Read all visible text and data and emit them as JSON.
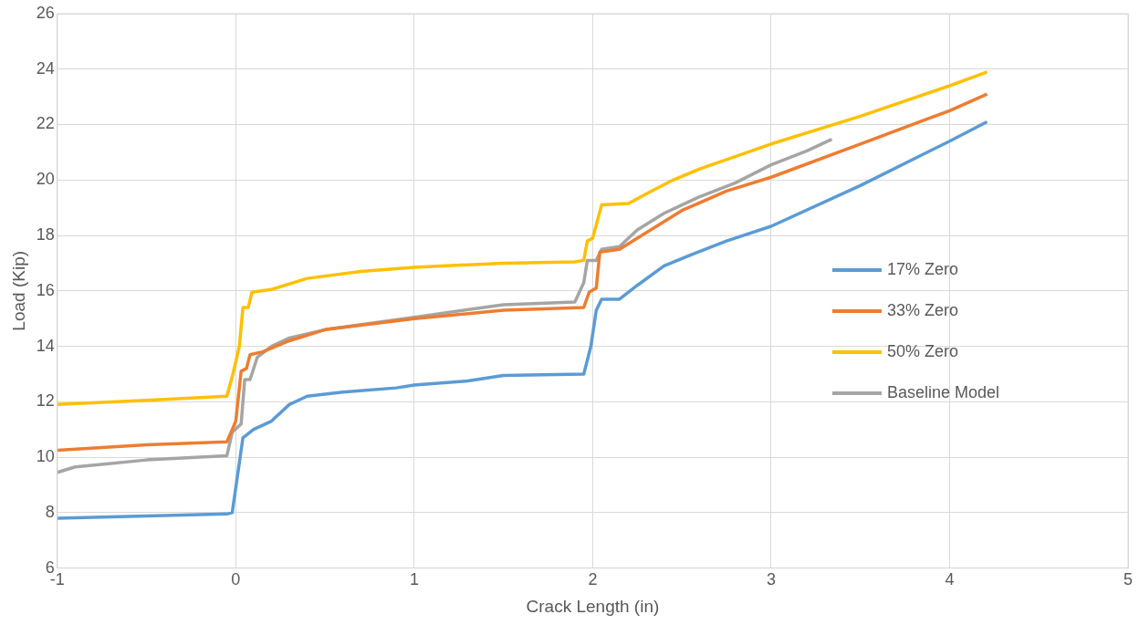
{
  "chart_data": {
    "type": "line",
    "xlabel": "Crack Length (in)",
    "ylabel": "Load (Kip)",
    "xlim": [
      -1,
      5
    ],
    "xticks": [
      -1,
      0,
      1,
      2,
      3,
      4,
      5
    ],
    "ylim": [
      6,
      26
    ],
    "yticks": [
      6,
      8,
      10,
      12,
      14,
      16,
      18,
      20,
      22,
      24,
      26
    ],
    "grid": true,
    "legend": "right",
    "marker": "none",
    "line_style": "solid",
    "series": [
      {
        "name": "17% Zero",
        "color": "#5b9bd5",
        "x": [
          -1,
          -0.7,
          -0.4,
          -0.05,
          -0.02,
          0.04,
          0.1,
          0.2,
          0.3,
          0.4,
          0.6,
          0.9,
          1.0,
          1.3,
          1.5,
          1.95,
          1.99,
          2.02,
          2.05,
          2.15,
          2.25,
          2.4,
          2.55,
          2.75,
          3.0,
          3.5,
          4.0,
          4.21
        ],
        "values": [
          7.8,
          7.85,
          7.9,
          7.95,
          8.0,
          10.7,
          11.0,
          11.3,
          11.9,
          12.2,
          12.35,
          12.5,
          12.6,
          12.75,
          12.95,
          13.0,
          14.0,
          15.3,
          15.7,
          15.7,
          16.2,
          16.9,
          17.3,
          17.8,
          18.33,
          19.8,
          21.4,
          22.1
        ]
      },
      {
        "name": "33% Zero",
        "color": "#ed7d31",
        "x": [
          -1,
          -0.5,
          -0.05,
          0,
          0.03,
          0.06,
          0.08,
          0.15,
          0.3,
          0.5,
          1.0,
          1.5,
          1.95,
          1.98,
          2.02,
          2.04,
          2.15,
          2.3,
          2.5,
          2.75,
          3.0,
          3.5,
          4.0,
          4.21
        ],
        "values": [
          10.25,
          10.45,
          10.55,
          11.3,
          13.1,
          13.2,
          13.7,
          13.8,
          14.2,
          14.6,
          15.0,
          15.3,
          15.4,
          15.95,
          16.1,
          17.4,
          17.5,
          18.1,
          18.9,
          19.6,
          20.1,
          21.3,
          22.5,
          23.1
        ]
      },
      {
        "name": "50% Zero",
        "color": "#ffc000",
        "x": [
          -1,
          -0.5,
          -0.05,
          -0.02,
          0.02,
          0.04,
          0.07,
          0.09,
          0.2,
          0.4,
          0.7,
          1.0,
          1.5,
          1.9,
          1.95,
          1.97,
          2.0,
          2.05,
          2.2,
          2.3,
          2.45,
          2.6,
          3.0,
          3.5,
          4.0,
          4.21
        ],
        "values": [
          11.9,
          12.05,
          12.2,
          12.9,
          14.0,
          15.4,
          15.4,
          15.95,
          16.05,
          16.45,
          16.7,
          16.85,
          17.0,
          17.05,
          17.1,
          17.8,
          17.9,
          19.1,
          19.15,
          19.5,
          20.0,
          20.4,
          21.3,
          22.3,
          23.4,
          23.9
        ]
      },
      {
        "name": "Baseline Model",
        "color": "#a5a5a5",
        "x": [
          -1,
          -0.9,
          -0.5,
          -0.05,
          -0.02,
          0.03,
          0.05,
          0.08,
          0.12,
          0.2,
          0.3,
          0.5,
          1.0,
          1.5,
          1.9,
          1.95,
          1.97,
          2.02,
          2.05,
          2.15,
          2.25,
          2.4,
          2.6,
          2.8,
          3.0,
          3.2,
          3.34
        ],
        "values": [
          9.45,
          9.65,
          9.9,
          10.05,
          10.9,
          11.2,
          12.8,
          12.8,
          13.6,
          14.0,
          14.3,
          14.6,
          15.05,
          15.5,
          15.6,
          16.3,
          17.1,
          17.1,
          17.5,
          17.6,
          18.2,
          18.8,
          19.4,
          19.9,
          20.55,
          21.05,
          21.47
        ]
      }
    ]
  }
}
